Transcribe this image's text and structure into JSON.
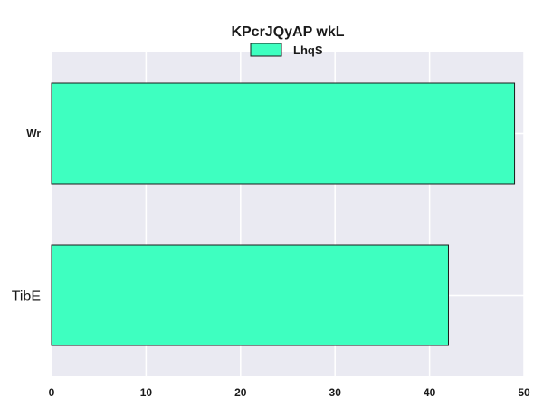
{
  "chart_data": {
    "type": "bar",
    "orientation": "horizontal",
    "title": "KPcrJQyAP wkL",
    "categories": [
      "Wr",
      "TibE"
    ],
    "series": [
      {
        "name": "LhqS",
        "values": [
          49,
          42
        ],
        "color": "#3effc0"
      }
    ],
    "xlim": [
      0,
      50
    ],
    "x_ticks": [
      0,
      10,
      20,
      30,
      40,
      50
    ],
    "grid": true,
    "legend_position": "top-center",
    "background_color": "#eaeaf2",
    "grid_color": "#ffffff"
  }
}
